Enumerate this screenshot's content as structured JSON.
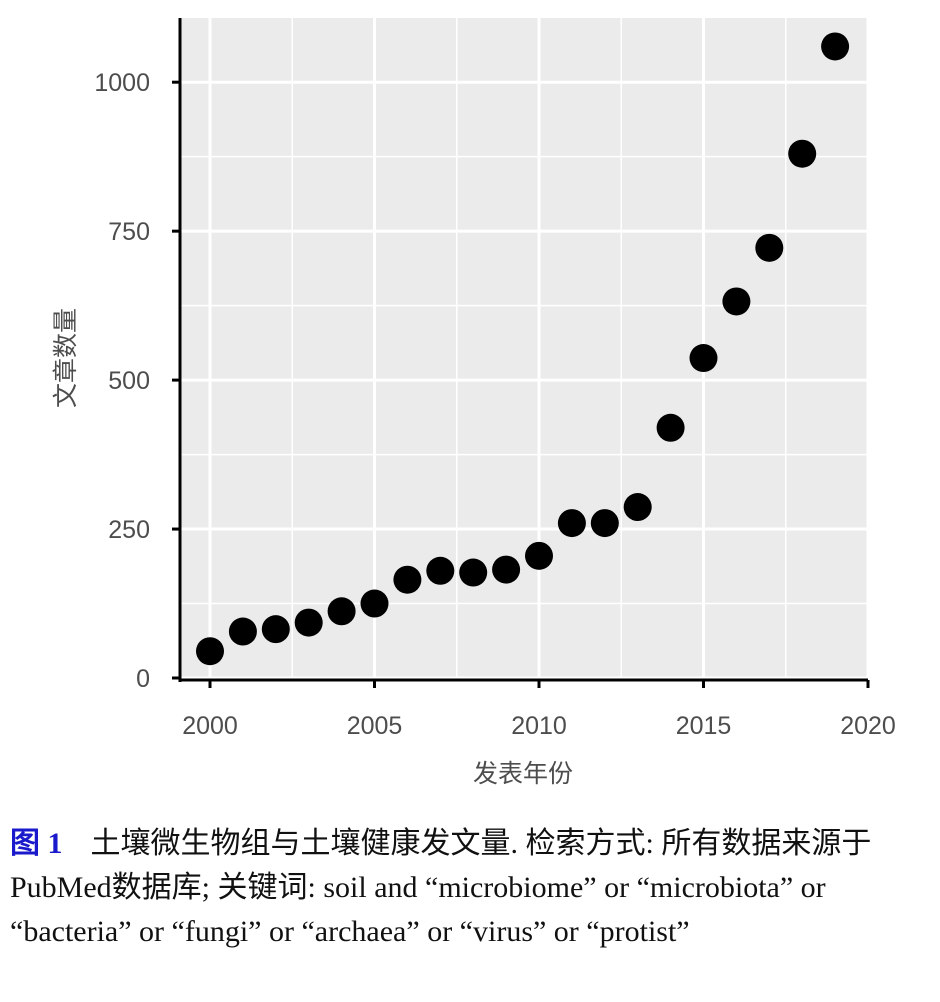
{
  "chart_data": {
    "type": "scatter",
    "xlabel": "发表年份",
    "ylabel": "文章数量",
    "xlim": [
      1999.1,
      2019.9
    ],
    "ylim": [
      0,
      1110
    ],
    "x_ticks": [
      2000,
      2005,
      2010,
      2015,
      2020
    ],
    "y_ticks": [
      0,
      250,
      500,
      750,
      1000
    ],
    "grid": true,
    "legend": "none",
    "point_color": "#000000",
    "panel_color": "#ebebeb",
    "points": [
      {
        "x": 2000,
        "y": 45
      },
      {
        "x": 2001,
        "y": 78
      },
      {
        "x": 2002,
        "y": 82
      },
      {
        "x": 2003,
        "y": 93
      },
      {
        "x": 2004,
        "y": 112
      },
      {
        "x": 2005,
        "y": 125
      },
      {
        "x": 2006,
        "y": 165
      },
      {
        "x": 2007,
        "y": 180
      },
      {
        "x": 2008,
        "y": 177
      },
      {
        "x": 2009,
        "y": 182
      },
      {
        "x": 2010,
        "y": 205
      },
      {
        "x": 2011,
        "y": 260
      },
      {
        "x": 2012,
        "y": 260
      },
      {
        "x": 2013,
        "y": 287
      },
      {
        "x": 2014,
        "y": 420
      },
      {
        "x": 2015,
        "y": 537
      },
      {
        "x": 2016,
        "y": 632
      },
      {
        "x": 2017,
        "y": 722
      },
      {
        "x": 2018,
        "y": 880
      },
      {
        "x": 2019,
        "y": 1060
      }
    ]
  },
  "caption": {
    "label": "图 1",
    "text": "土壤微生物组与土壤健康发文量. 检索方式: 所有数据来源于PubMed数据库; 关键词: soil and “microbiome” or “microbiota” or “bacteria” or “fungi” or “archaea” or “virus” or “protist”"
  }
}
